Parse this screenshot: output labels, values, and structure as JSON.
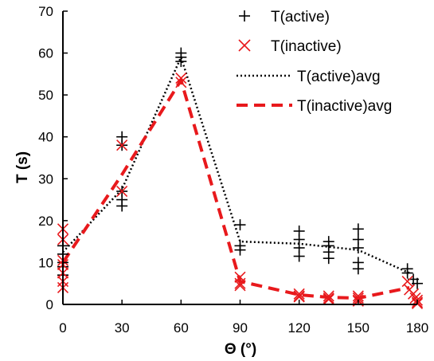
{
  "chart_data": {
    "type": "scatter",
    "title": "",
    "xlabel": "Θ (°)",
    "ylabel": "T (s)",
    "xlim": [
      0,
      180
    ],
    "ylim": [
      0,
      70
    ],
    "xticks": [
      0,
      30,
      60,
      90,
      120,
      150,
      180
    ],
    "yticks": [
      0,
      10,
      20,
      30,
      40,
      50,
      60,
      70
    ],
    "xtick_labels": [
      "0",
      "30",
      "60",
      "90",
      "120",
      "150",
      "180"
    ],
    "ytick_labels": [
      "0",
      "10",
      "20",
      "30",
      "40",
      "50",
      "60",
      "70"
    ],
    "grid": false,
    "legend_position": "top-right",
    "colors": {
      "active": "#000000",
      "inactive": "#e8191c"
    },
    "series": [
      {
        "name": "T(active)",
        "kind": "scatter",
        "marker": "plus",
        "points": [
          [
            0,
            14
          ],
          [
            0,
            12
          ],
          [
            0,
            10
          ],
          [
            0,
            9
          ],
          [
            0,
            7
          ],
          [
            30,
            40
          ],
          [
            30,
            38
          ],
          [
            30,
            27
          ],
          [
            30,
            25
          ],
          [
            30,
            23.5
          ],
          [
            60,
            60
          ],
          [
            60,
            59
          ],
          [
            60,
            58
          ],
          [
            90,
            19
          ],
          [
            90,
            14
          ],
          [
            90,
            13
          ],
          [
            120,
            17.5
          ],
          [
            120,
            15.5
          ],
          [
            120,
            13.5
          ],
          [
            120,
            11.5
          ],
          [
            135,
            15
          ],
          [
            135,
            14
          ],
          [
            135,
            12.5
          ],
          [
            135,
            11
          ],
          [
            150,
            18
          ],
          [
            150,
            15.5
          ],
          [
            150,
            13.5
          ],
          [
            150,
            10
          ],
          [
            150,
            8.5
          ],
          [
            175,
            8.5
          ],
          [
            175,
            7.5
          ],
          [
            178,
            6
          ],
          [
            180,
            5
          ]
        ]
      },
      {
        "name": "T(inactive)",
        "kind": "scatter",
        "marker": "x",
        "points": [
          [
            0,
            18
          ],
          [
            0,
            15.5
          ],
          [
            0,
            10.5
          ],
          [
            0,
            9.5
          ],
          [
            0,
            7.5
          ],
          [
            0,
            5.5
          ],
          [
            0,
            4
          ],
          [
            30,
            38
          ],
          [
            30,
            27
          ],
          [
            60,
            54
          ],
          [
            60,
            53
          ],
          [
            90,
            6.5
          ],
          [
            90,
            5
          ],
          [
            90,
            4.5
          ],
          [
            120,
            2.5
          ],
          [
            120,
            2
          ],
          [
            120,
            1.8
          ],
          [
            135,
            2
          ],
          [
            135,
            1.5
          ],
          [
            135,
            1.2
          ],
          [
            150,
            2
          ],
          [
            150,
            1.5
          ],
          [
            150,
            1
          ],
          [
            150,
            0.8
          ],
          [
            175,
            5.5
          ],
          [
            176,
            3.5
          ],
          [
            178,
            2.5
          ],
          [
            179,
            1.5
          ],
          [
            180,
            1
          ],
          [
            180,
            0.5
          ],
          [
            180,
            0.2
          ]
        ]
      },
      {
        "name": "T(active)avg",
        "kind": "line",
        "style": "dotted",
        "points": [
          [
            0,
            12.5
          ],
          [
            30,
            27.5
          ],
          [
            60,
            59
          ],
          [
            90,
            15
          ],
          [
            120,
            14.5
          ],
          [
            150,
            13
          ],
          [
            176,
            7.5
          ]
        ]
      },
      {
        "name": "T(inactive)avg",
        "kind": "line",
        "style": "dashed",
        "points": [
          [
            0,
            10
          ],
          [
            30,
            31
          ],
          [
            60,
            53.5
          ],
          [
            90,
            5.5
          ],
          [
            120,
            2.3
          ],
          [
            135,
            1.7
          ],
          [
            150,
            1.5
          ],
          [
            176,
            4
          ]
        ]
      }
    ]
  }
}
